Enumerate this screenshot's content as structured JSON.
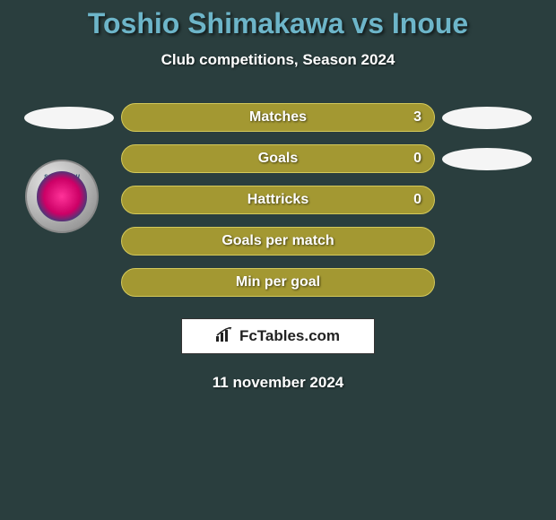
{
  "title": "Toshio Shimakawa vs Inoue",
  "subtitle": "Club competitions, Season 2024",
  "date": "11 november 2024",
  "attribution": {
    "text": "FcTables.com"
  },
  "club_logo": {
    "name": "sagantosu"
  },
  "colors": {
    "background": "#2a3e3e",
    "title": "#6db5c9",
    "subtitle": "#ffffff",
    "pill_bg": "#a39832",
    "pill_border": "#d4c95a",
    "pill_text": "#ffffff",
    "badge_bg": "#f5f5f5",
    "attr_bg": "#ffffff",
    "attr_text": "#222222"
  },
  "typography": {
    "title_size": 32,
    "title_weight": 900,
    "subtitle_size": 17,
    "subtitle_weight": 700,
    "pill_label_size": 16,
    "pill_label_weight": 700,
    "date_size": 17,
    "date_weight": 700
  },
  "layout": {
    "pill_width": 350,
    "pill_height": 32,
    "pill_radius": 16,
    "row_gap": 14,
    "badge_width": 100,
    "badge_height": 25
  },
  "rows": [
    {
      "label": "Matches",
      "value_right": "3",
      "show_left_badge": true,
      "show_right_badge": true
    },
    {
      "label": "Goals",
      "value_right": "0",
      "show_left_badge": false,
      "show_right_badge": true
    },
    {
      "label": "Hattricks",
      "value_right": "0",
      "show_left_badge": false,
      "show_right_badge": false
    },
    {
      "label": "Goals per match",
      "value_right": "",
      "show_left_badge": false,
      "show_right_badge": false
    },
    {
      "label": "Min per goal",
      "value_right": "",
      "show_left_badge": false,
      "show_right_badge": false
    }
  ]
}
